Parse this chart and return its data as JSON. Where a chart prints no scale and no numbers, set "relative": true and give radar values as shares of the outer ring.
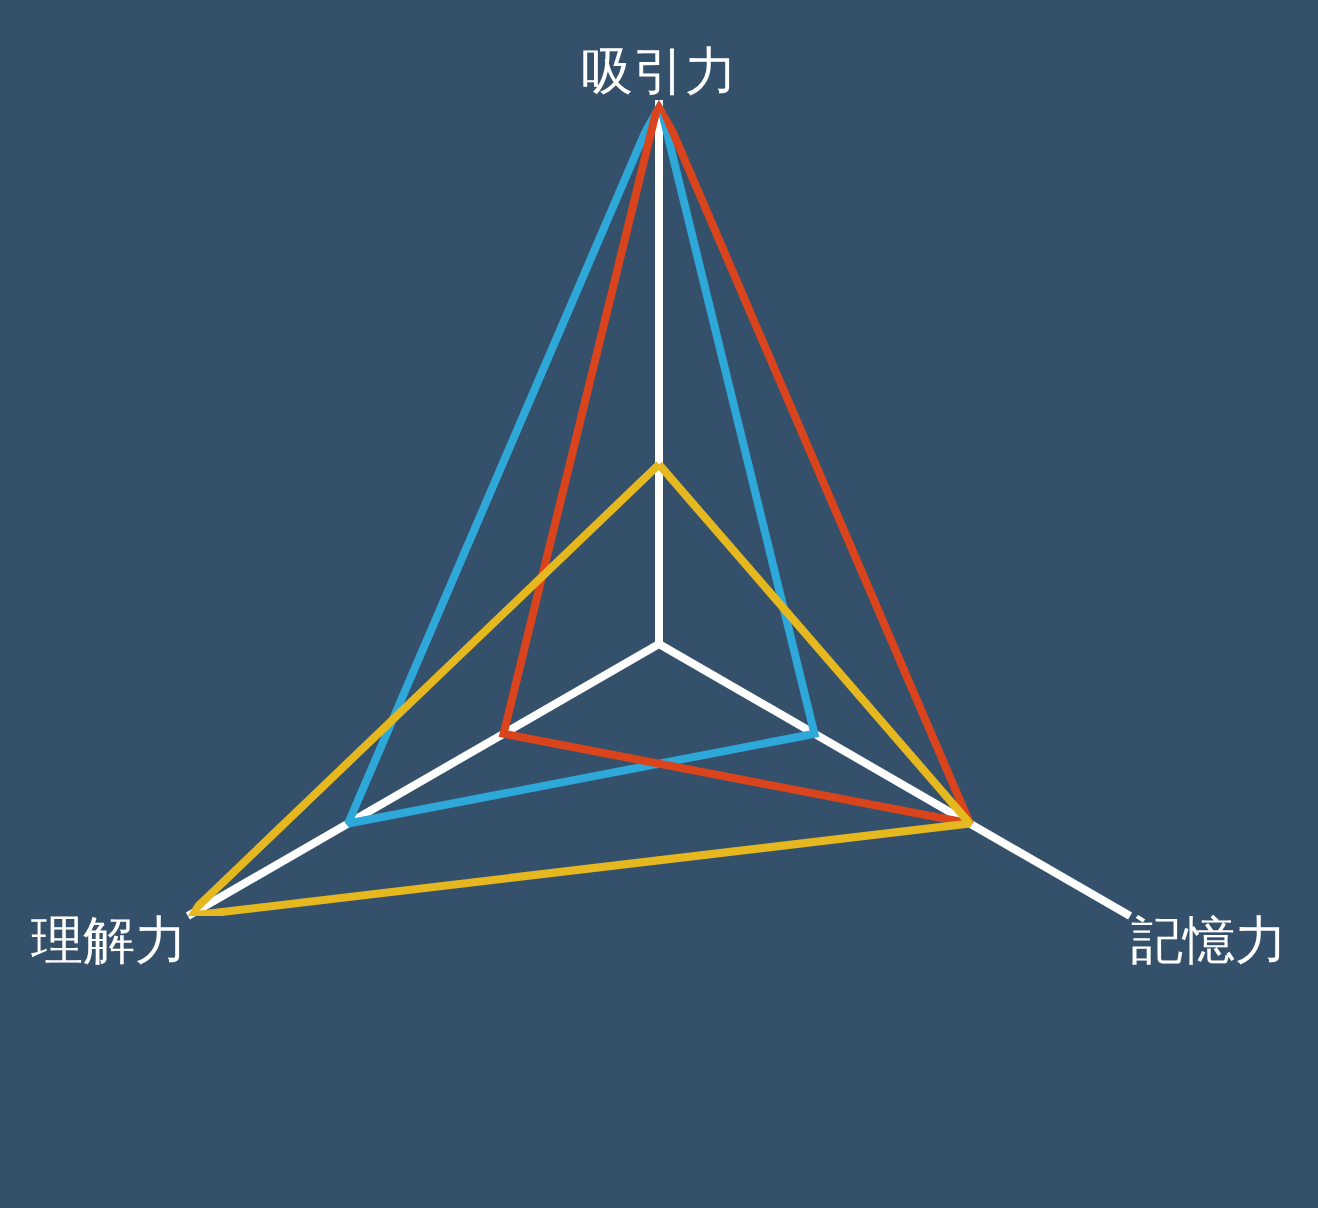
{
  "chart_data": {
    "type": "radar",
    "relative": true,
    "categories": [
      "吸引力",
      "記憶力",
      "理解力"
    ],
    "series": [
      {
        "color": "#2ea8d8",
        "values": [
          1.0,
          0.33,
          0.66
        ]
      },
      {
        "color": "#d9441c",
        "values": [
          1.0,
          0.66,
          0.33
        ]
      },
      {
        "color": "#e6b820",
        "values": [
          0.33,
          0.66,
          1.0
        ]
      }
    ],
    "grid": "x"
  }
}
